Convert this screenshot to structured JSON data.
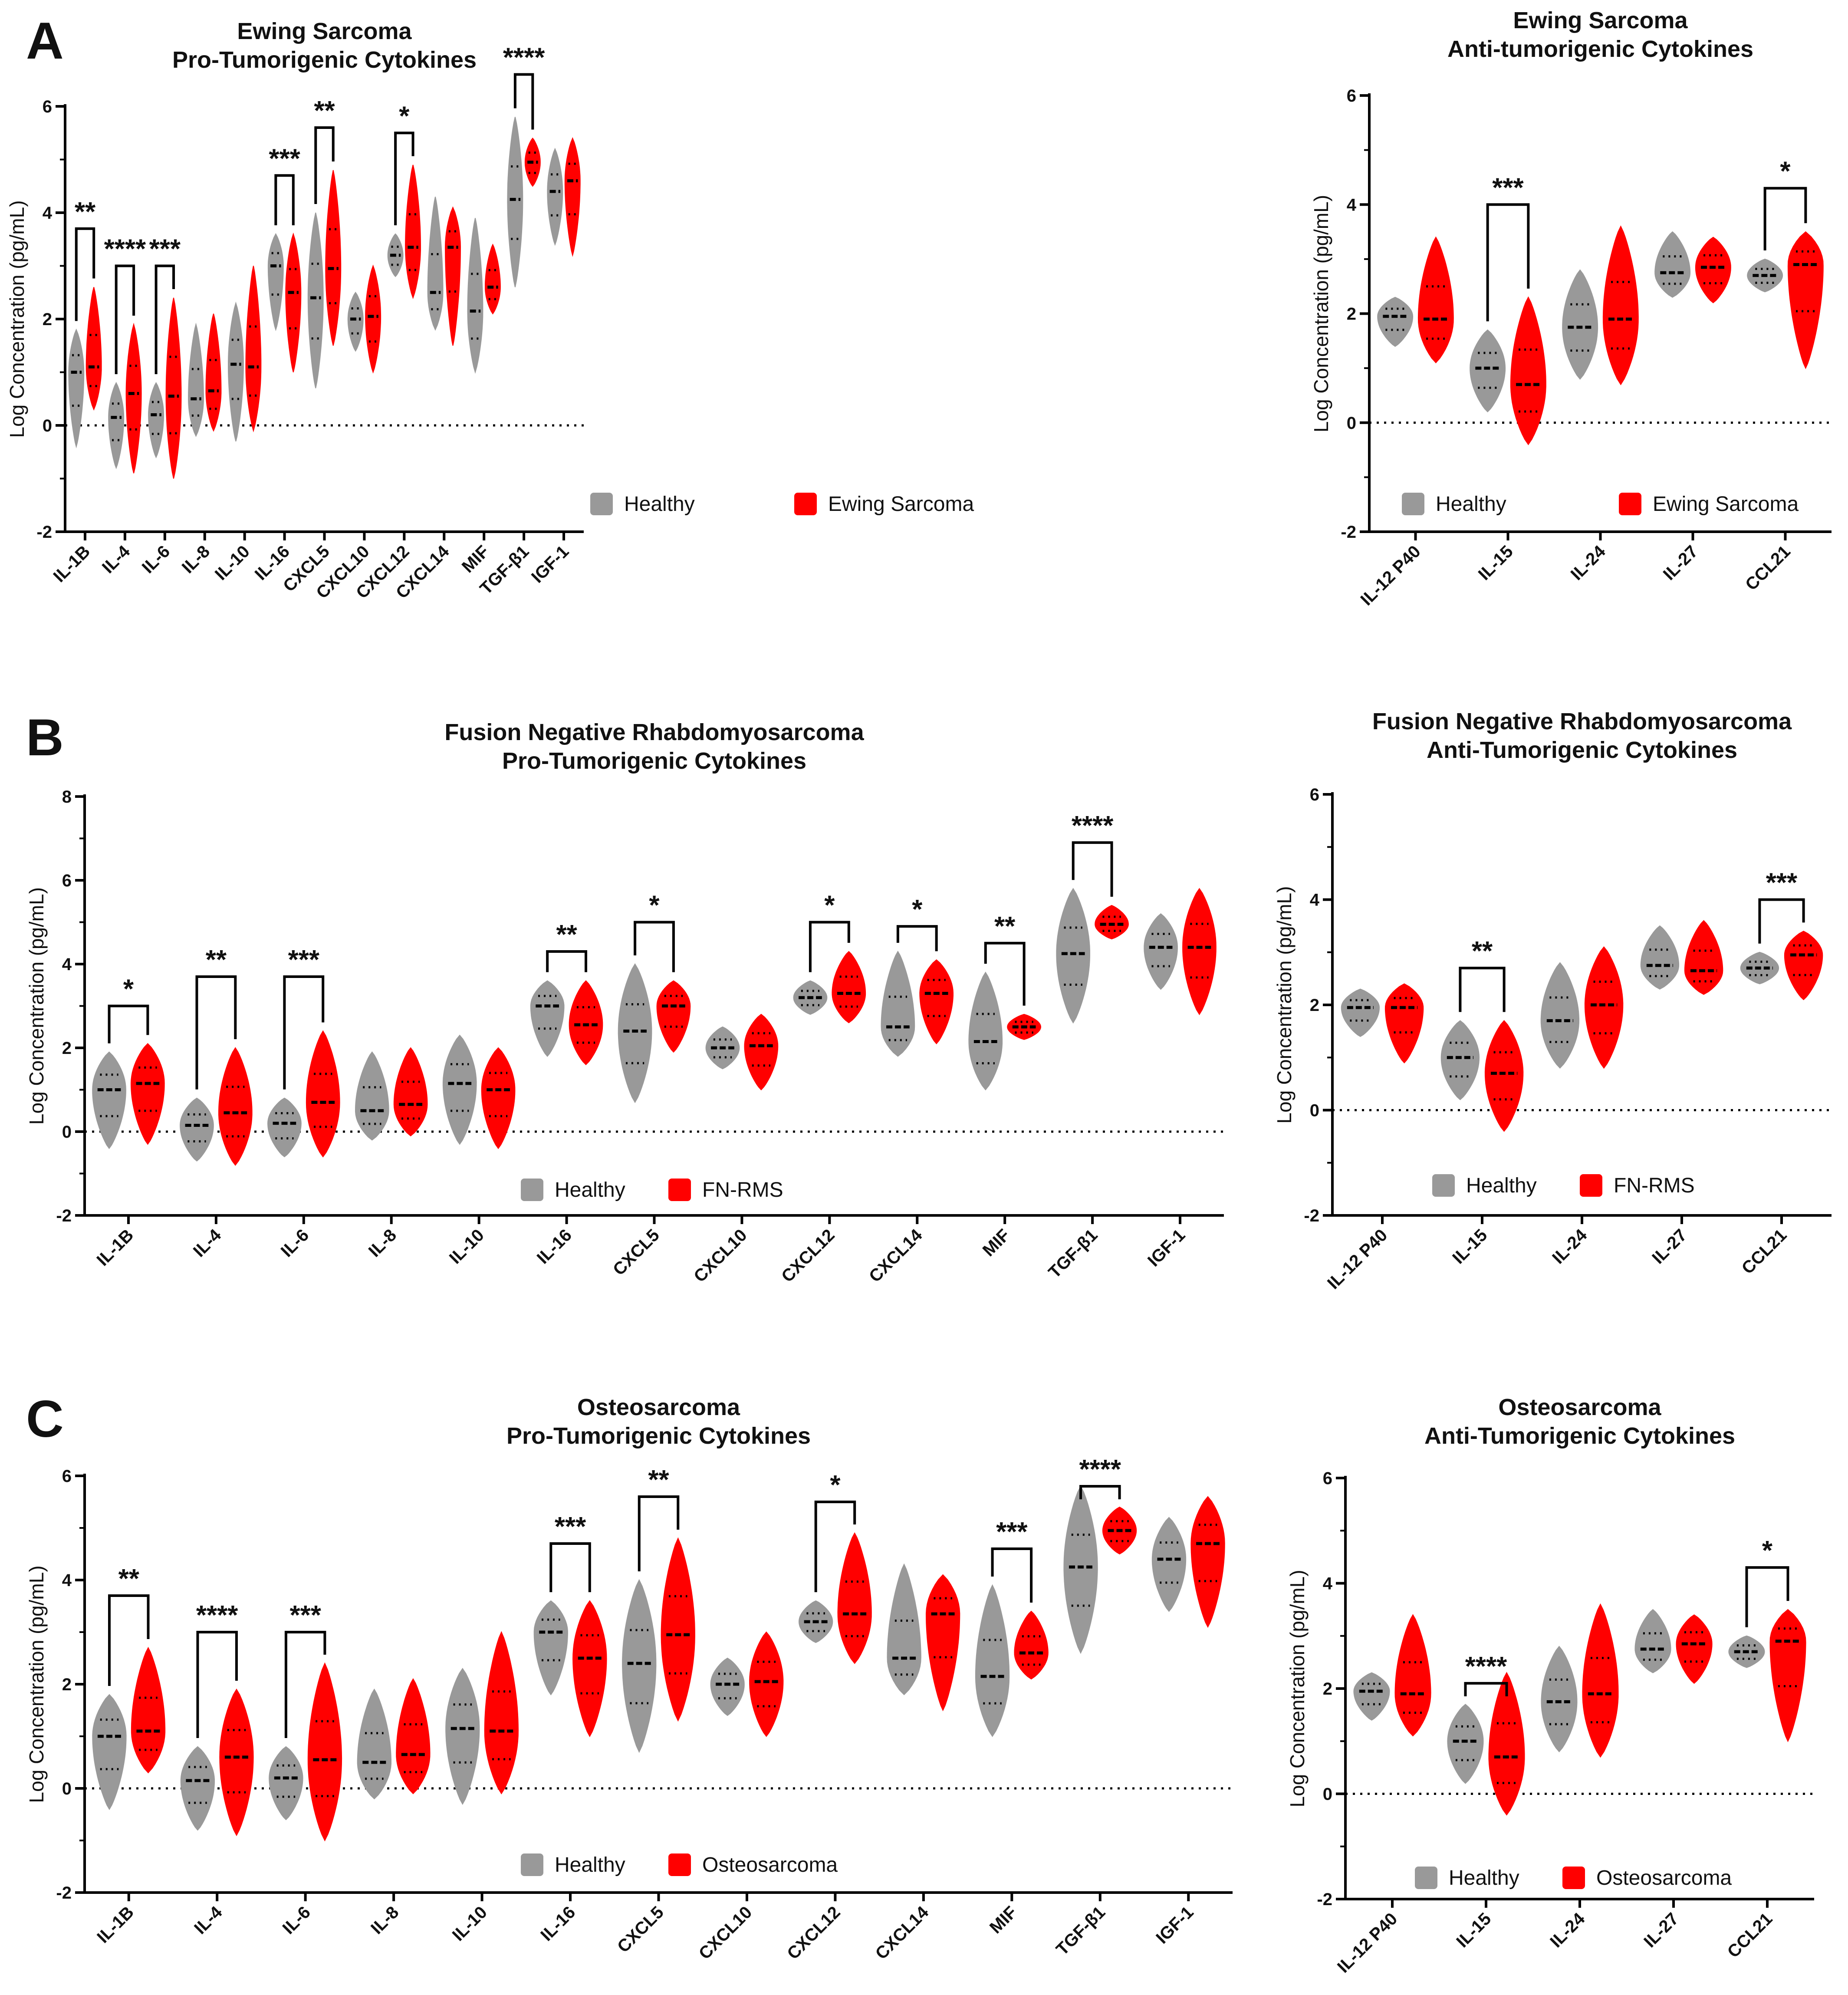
{
  "colors": {
    "healthy": "#999999",
    "disease": "#FF0000",
    "axis": "#000000"
  },
  "chart_data": [
    {
      "panel_letter": "A",
      "type": "violin",
      "title": [
        "Ewing Sarcoma",
        "Pro-Tumorigenic Cytokines"
      ],
      "ylabel": "Log Concentration (pg/mL)",
      "ylim": [
        -2,
        6
      ],
      "yticks": [
        "-2",
        "0",
        "2",
        "4",
        "6"
      ],
      "legend": [
        "Healthy",
        "Ewing Sarcoma"
      ],
      "categories": [
        "IL-1B",
        "IL-4",
        "IL-6",
        "IL-8",
        "IL-10",
        "IL-16",
        "CXCL5",
        "CXCL10",
        "CXCL12",
        "CXCL14",
        "MIF",
        "TGF-β1",
        "IGF-1"
      ],
      "series": [
        {
          "name": "Healthy",
          "min": [
            -0.4,
            -0.8,
            -0.6,
            -0.2,
            -0.3,
            1.8,
            0.7,
            1.4,
            2.8,
            1.8,
            1.0,
            2.6,
            3.4
          ],
          "median": [
            1.0,
            0.15,
            0.2,
            0.5,
            1.15,
            3.0,
            2.4,
            2.0,
            3.2,
            2.5,
            2.15,
            4.25,
            4.4
          ],
          "max": [
            1.8,
            0.8,
            0.8,
            1.9,
            2.3,
            3.6,
            4.0,
            2.5,
            3.6,
            4.3,
            3.9,
            5.8,
            5.2
          ]
        },
        {
          "name": "Ewing Sarcoma",
          "min": [
            0.3,
            -0.9,
            -1.0,
            -0.1,
            -0.1,
            1.0,
            1.5,
            1.0,
            2.4,
            1.5,
            2.1,
            4.5,
            3.2
          ],
          "median": [
            1.1,
            0.6,
            0.55,
            0.65,
            1.1,
            2.5,
            2.95,
            2.05,
            3.35,
            3.35,
            2.6,
            4.95,
            4.6
          ],
          "max": [
            2.6,
            1.9,
            2.4,
            2.1,
            3.0,
            3.6,
            4.8,
            3.0,
            4.9,
            4.1,
            3.4,
            5.4,
            5.4
          ]
        }
      ],
      "significance": [
        {
          "category": "IL-1B",
          "label": "**",
          "y": 3.7
        },
        {
          "category": "IL-4",
          "label": "****",
          "y": 3.0
        },
        {
          "category": "IL-6",
          "label": "***",
          "y": 3.0
        },
        {
          "category": "IL-16",
          "label": "***",
          "y": 4.7
        },
        {
          "category": "CXCL5",
          "label": "**",
          "y": 5.6
        },
        {
          "category": "CXCL12",
          "label": "*",
          "y": 5.5
        },
        {
          "category": "TGF-β1",
          "label": "****",
          "y": 6.6
        }
      ]
    },
    {
      "panel_letter": "",
      "type": "violin",
      "title": [
        "Ewing Sarcoma",
        "Anti-tumorigenic Cytokines"
      ],
      "ylabel": "Log Concentration (pg/mL)",
      "ylim": [
        -2,
        6
      ],
      "yticks": [
        "-2",
        "0",
        "2",
        "4",
        "6"
      ],
      "legend": [
        "Healthy",
        "Ewing Sarcoma"
      ],
      "categories": [
        "IL-12 P40",
        "IL-15",
        "IL-24",
        "IL-27",
        "CCL21"
      ],
      "series": [
        {
          "name": "Healthy",
          "min": [
            1.4,
            0.2,
            0.8,
            2.3,
            2.4
          ],
          "median": [
            1.95,
            1.0,
            1.75,
            2.75,
            2.7
          ],
          "max": [
            2.3,
            1.7,
            2.8,
            3.5,
            3.0
          ]
        },
        {
          "name": "Ewing Sarcoma",
          "min": [
            1.1,
            -0.4,
            0.7,
            2.2,
            1.0
          ],
          "median": [
            1.9,
            0.7,
            1.9,
            2.85,
            2.9
          ],
          "max": [
            3.4,
            2.3,
            3.6,
            3.4,
            3.5
          ]
        }
      ],
      "significance": [
        {
          "category": "IL-15",
          "label": "***",
          "y": 4.0
        },
        {
          "category": "CCL21",
          "label": "*",
          "y": 4.3
        }
      ]
    },
    {
      "panel_letter": "B",
      "type": "violin",
      "title": [
        "Fusion Negative Rhabdomyosarcoma",
        "Pro-Tumorigenic Cytokines"
      ],
      "ylabel": "Log Concentration (pg/mL)",
      "ylim": [
        -2,
        8
      ],
      "yticks": [
        "-2",
        "0",
        "2",
        "4",
        "6",
        "8"
      ],
      "legend": [
        "Healthy",
        "FN-RMS"
      ],
      "categories": [
        "IL-1B",
        "IL-4",
        "IL-6",
        "IL-8",
        "IL-10",
        "IL-16",
        "CXCL5",
        "CXCL10",
        "CXCL12",
        "CXCL14",
        "MIF",
        "TGF-β1",
        "IGF-1"
      ],
      "series": [
        {
          "name": "Healthy",
          "min": [
            -0.4,
            -0.7,
            -0.6,
            -0.2,
            -0.3,
            1.8,
            0.7,
            1.5,
            2.8,
            1.8,
            1.0,
            2.6,
            3.4
          ],
          "median": [
            1.0,
            0.15,
            0.2,
            0.5,
            1.15,
            3.0,
            2.4,
            2.0,
            3.2,
            2.5,
            2.15,
            4.25,
            4.4
          ],
          "max": [
            1.9,
            0.8,
            0.8,
            1.9,
            2.3,
            3.6,
            4.0,
            2.5,
            3.6,
            4.3,
            3.8,
            5.8,
            5.2
          ]
        },
        {
          "name": "FN-RMS",
          "min": [
            -0.3,
            -0.8,
            -0.6,
            -0.1,
            -0.4,
            1.6,
            1.9,
            1.0,
            2.6,
            2.1,
            2.2,
            4.6,
            2.8
          ],
          "median": [
            1.15,
            0.45,
            0.7,
            0.65,
            1.0,
            2.55,
            3.0,
            2.05,
            3.3,
            3.3,
            2.5,
            4.95,
            4.4
          ],
          "max": [
            2.1,
            2.0,
            2.4,
            2.0,
            2.0,
            3.6,
            3.6,
            2.8,
            4.3,
            4.1,
            2.8,
            5.4,
            5.8
          ]
        }
      ],
      "significance": [
        {
          "category": "IL-1B",
          "label": "*",
          "y": 3.0
        },
        {
          "category": "IL-4",
          "label": "**",
          "y": 3.7
        },
        {
          "category": "IL-6",
          "label": "***",
          "y": 3.7
        },
        {
          "category": "IL-16",
          "label": "**",
          "y": 4.3
        },
        {
          "category": "CXCL5",
          "label": "*",
          "y": 5.0
        },
        {
          "category": "CXCL12",
          "label": "*",
          "y": 5.0
        },
        {
          "category": "CXCL14",
          "label": "*",
          "y": 4.9
        },
        {
          "category": "MIF",
          "label": "**",
          "y": 4.5
        },
        {
          "category": "TGF-β1",
          "label": "****",
          "y": 6.9
        }
      ]
    },
    {
      "panel_letter": "",
      "type": "violin",
      "title": [
        "Fusion Negative Rhabdomyosarcoma",
        "Anti-Tumorigenic Cytokines"
      ],
      "ylabel": "Log Concentration (pg/mL)",
      "ylim": [
        -2,
        6
      ],
      "yticks": [
        "-2",
        "0",
        "2",
        "4",
        "6"
      ],
      "legend": [
        "Healthy",
        "FN-RMS"
      ],
      "categories": [
        "IL-12 P40",
        "IL-15",
        "IL-24",
        "IL-27",
        "CCL21"
      ],
      "series": [
        {
          "name": "Healthy",
          "min": [
            1.4,
            0.2,
            0.8,
            2.3,
            2.4
          ],
          "median": [
            1.95,
            1.0,
            1.7,
            2.75,
            2.7
          ],
          "max": [
            2.3,
            1.7,
            2.8,
            3.5,
            3.0
          ]
        },
        {
          "name": "FN-RMS",
          "min": [
            0.9,
            -0.4,
            0.8,
            2.2,
            2.1
          ],
          "median": [
            1.95,
            0.7,
            2.0,
            2.65,
            2.95
          ],
          "max": [
            2.4,
            1.7,
            3.1,
            3.6,
            3.4
          ]
        }
      ],
      "significance": [
        {
          "category": "IL-15",
          "label": "**",
          "y": 2.7
        },
        {
          "category": "CCL21",
          "label": "***",
          "y": 4.0
        }
      ]
    },
    {
      "panel_letter": "C",
      "type": "violin",
      "title": [
        "Osteosarcoma",
        "Pro-Tumorigenic Cytokines"
      ],
      "ylabel": "Log Concentration (pg/mL)",
      "ylim": [
        -2,
        6
      ],
      "yticks": [
        "-2",
        "0",
        "2",
        "4",
        "6"
      ],
      "legend": [
        "Healthy",
        "Osteosarcoma"
      ],
      "categories": [
        "IL-1B",
        "IL-4",
        "IL-6",
        "IL-8",
        "IL-10",
        "IL-16",
        "CXCL5",
        "CXCL10",
        "CXCL12",
        "CXCL14",
        "MIF",
        "TGF-β1",
        "IGF-1"
      ],
      "series": [
        {
          "name": "Healthy",
          "min": [
            -0.4,
            -0.8,
            -0.6,
            -0.2,
            -0.3,
            1.8,
            0.7,
            1.4,
            2.8,
            1.8,
            1.0,
            2.6,
            3.4
          ],
          "median": [
            1.0,
            0.15,
            0.2,
            0.5,
            1.15,
            3.0,
            2.4,
            2.0,
            3.2,
            2.5,
            2.15,
            4.25,
            4.4
          ],
          "max": [
            1.8,
            0.8,
            0.8,
            1.9,
            2.3,
            3.6,
            4.0,
            2.5,
            3.6,
            4.3,
            3.9,
            5.8,
            5.2
          ]
        },
        {
          "name": "Osteosarcoma",
          "min": [
            0.3,
            -0.9,
            -1.0,
            -0.1,
            -0.1,
            1.0,
            1.3,
            1.0,
            2.4,
            1.5,
            2.1,
            4.5,
            3.1
          ],
          "median": [
            1.1,
            0.6,
            0.55,
            0.65,
            1.1,
            2.5,
            2.95,
            2.05,
            3.35,
            3.35,
            2.6,
            4.95,
            4.7
          ],
          "max": [
            2.7,
            1.9,
            2.4,
            2.1,
            3.0,
            3.6,
            4.8,
            3.0,
            4.9,
            4.1,
            3.4,
            5.4,
            5.6
          ]
        }
      ],
      "significance": [
        {
          "category": "IL-1B",
          "label": "**",
          "y": 3.7
        },
        {
          "category": "IL-4",
          "label": "****",
          "y": 3.0
        },
        {
          "category": "IL-6",
          "label": "***",
          "y": 3.0
        },
        {
          "category": "IL-16",
          "label": "***",
          "y": 4.7
        },
        {
          "category": "CXCL5",
          "label": "**",
          "y": 5.6
        },
        {
          "category": "CXCL12",
          "label": "*",
          "y": 5.5
        },
        {
          "category": "MIF",
          "label": "***",
          "y": 4.6
        },
        {
          "category": "TGF-β1",
          "label": "****",
          "y": 5.8
        }
      ]
    },
    {
      "panel_letter": "",
      "type": "violin",
      "title": [
        "Osteosarcoma",
        "Anti-Tumorigenic Cytokines"
      ],
      "ylabel": "Log Concentration (pg/mL)",
      "ylim": [
        -2,
        6
      ],
      "yticks": [
        "-2",
        "0",
        "2",
        "4",
        "6"
      ],
      "legend": [
        "Healthy",
        "Osteosarcoma"
      ],
      "categories": [
        "IL-12 P40",
        "IL-15",
        "IL-24",
        "IL-27",
        "CCL21"
      ],
      "series": [
        {
          "name": "Healthy",
          "min": [
            1.4,
            0.2,
            0.8,
            2.3,
            2.4
          ],
          "median": [
            1.95,
            1.0,
            1.75,
            2.75,
            2.7
          ],
          "max": [
            2.3,
            1.7,
            2.8,
            3.5,
            3.0
          ]
        },
        {
          "name": "Osteosarcoma",
          "min": [
            1.1,
            -0.4,
            0.7,
            2.1,
            1.0
          ],
          "median": [
            1.9,
            0.7,
            1.9,
            2.85,
            2.9
          ],
          "max": [
            3.4,
            2.3,
            3.6,
            3.4,
            3.5
          ]
        }
      ],
      "significance": [
        {
          "category": "IL-15",
          "label": "****",
          "y": 2.1
        },
        {
          "category": "CCL21",
          "label": "*",
          "y": 4.3
        }
      ]
    }
  ]
}
